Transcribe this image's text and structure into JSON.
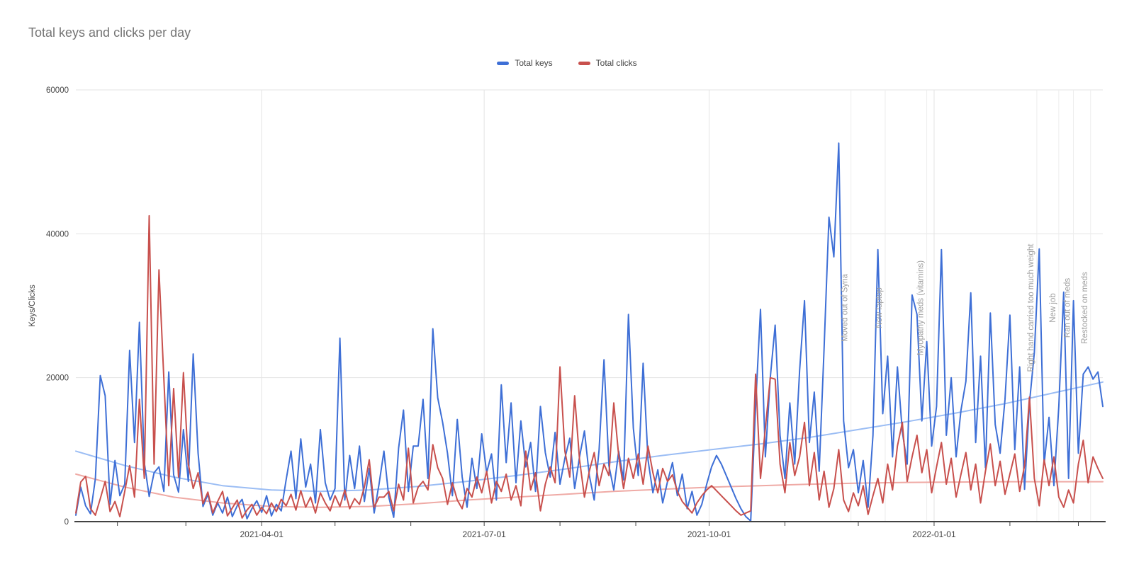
{
  "chart_data": {
    "type": "line",
    "title": "Total keys and clicks per day",
    "ylabel": "Keys/Clicks",
    "xlabel": "",
    "legend": [
      "Total keys",
      "Total clicks"
    ],
    "legend_position": "top-center",
    "grid": true,
    "ylim": [
      0,
      60000
    ],
    "x_start_date": "2021-01-15",
    "x_total_days": 420,
    "x_step_days": 2,
    "y_ticks": [
      {
        "label": "0",
        "value": 0
      },
      {
        "label": "20000",
        "value": 20000
      },
      {
        "label": "40000",
        "value": 40000
      },
      {
        "label": "60000",
        "value": 60000
      }
    ],
    "x_ticks": [
      {
        "label": "2021-04-01",
        "day": 76
      },
      {
        "label": "2021-07-01",
        "day": 167
      },
      {
        "label": "2021-10-01",
        "day": 259
      },
      {
        "label": "2022-01-01",
        "day": 351
      }
    ],
    "x_minor_tick_days": [
      17,
      45,
      76,
      106,
      137,
      167,
      198,
      229,
      259,
      290,
      320,
      351,
      382,
      410
    ],
    "annotations": [
      {
        "label": "Moved out of Syria",
        "day": 317
      },
      {
        "label": "New laptop",
        "day": 331
      },
      {
        "label": "Myopathy meds (vitamins)",
        "day": 348
      },
      {
        "label": "Right hand carried too much weight",
        "day": 393
      },
      {
        "label": "New job",
        "day": 402
      },
      {
        "label": "Ran out of meds",
        "day": 408
      },
      {
        "label": "Restocked on meds",
        "day": 415
      }
    ],
    "colors": {
      "keys": "#3e6fd6",
      "clicks": "#c8504d",
      "keys_trend": "#9bbdf4",
      "clicks_trend": "#efaaa5",
      "grid": "#e3e3e3",
      "annotation_line": "#ededed",
      "axis": "#424242",
      "tick_label": "#444444",
      "title": "#757575",
      "annotation_text": "#9e9e9e"
    },
    "series": [
      {
        "name": "Total keys",
        "values": [
          900,
          4800,
          2200,
          1100,
          6000,
          20300,
          17500,
          2400,
          8500,
          3600,
          5200,
          23800,
          11000,
          27700,
          8200,
          3500,
          6800,
          7600,
          4200,
          20800,
          6500,
          4100,
          12800,
          5600,
          23300,
          9500,
          2100,
          3800,
          900,
          2600,
          1200,
          3400,
          700,
          2200,
          3100,
          400,
          1800,
          2900,
          1300,
          3600,
          800,
          2400,
          1500,
          5800,
          9800,
          3200,
          11500,
          4800,
          8000,
          2600,
          12800,
          5400,
          3000,
          4600,
          25500,
          3000,
          9200,
          4600,
          10500,
          2800,
          7400,
          1200,
          5200,
          9800,
          3400,
          600,
          10200,
          15500,
          4200,
          10500,
          10500,
          17000,
          6000,
          26800,
          17200,
          13800,
          9500,
          3600,
          14200,
          6200,
          2000,
          8800,
          4600,
          12200,
          6800,
          9400,
          3000,
          19000,
          8200,
          16500,
          5400,
          14000,
          7600,
          11000,
          4200,
          16000,
          9600,
          6200,
          12400,
          5200,
          8800,
          11600,
          4600,
          9000,
          12600,
          6400,
          3000,
          10000,
          22500,
          7800,
          4400,
          9800,
          5800,
          28800,
          13000,
          6400,
          22000,
          8600,
          4000,
          7200,
          2600,
          5600,
          8200,
          3600,
          6600,
          1800,
          4200,
          900,
          2400,
          5200,
          7600,
          9200,
          8000,
          6400,
          4800,
          3200,
          1800,
          700,
          100,
          16000,
          29500,
          9000,
          20000,
          27300,
          12000,
          6000,
          16500,
          8000,
          21000,
          30700,
          11000,
          18000,
          7000,
          24000,
          42300,
          36800,
          52600,
          14000,
          7500,
          10000,
          4000,
          8500,
          2000,
          12000,
          37800,
          15000,
          23000,
          9000,
          21500,
          12500,
          8000,
          31500,
          28800,
          14000,
          25000,
          10500,
          16000,
          37800,
          12000,
          20000,
          9000,
          15500,
          19500,
          31800,
          11000,
          23000,
          7500,
          29000,
          13500,
          9500,
          17000,
          28700,
          10000,
          21500,
          4500,
          16500,
          23500,
          37900,
          8000,
          14500,
          5000,
          16000,
          31900,
          6000,
          30700,
          9500,
          20500,
          21500,
          19800,
          20800,
          16000
        ]
      },
      {
        "name": "Total clicks",
        "values": [
          1200,
          5500,
          6300,
          1800,
          900,
          3200,
          5600,
          1400,
          2800,
          700,
          4200,
          7800,
          3400,
          17000,
          6000,
          42500,
          8000,
          35000,
          19800,
          5000,
          18500,
          6200,
          20700,
          8000,
          4600,
          6800,
          2500,
          4100,
          1200,
          2800,
          4200,
          800,
          1900,
          3000,
          500,
          1600,
          2400,
          900,
          2000,
          1100,
          2600,
          1400,
          3100,
          2200,
          3800,
          1600,
          4300,
          2000,
          3400,
          1200,
          4000,
          2600,
          1500,
          3600,
          2100,
          4400,
          1800,
          3200,
          2400,
          4800,
          8600,
          2000,
          3400,
          3400,
          4200,
          1500,
          5200,
          3000,
          10200,
          2600,
          4800,
          5600,
          4400,
          10700,
          7500,
          6000,
          2400,
          5400,
          3000,
          1800,
          4600,
          3400,
          6200,
          4000,
          7000,
          2600,
          5600,
          4200,
          6600,
          3000,
          5000,
          2200,
          9800,
          4400,
          6800,
          1500,
          5200,
          7600,
          5400,
          21500,
          9800,
          6200,
          17500,
          8600,
          3400,
          7000,
          9600,
          5000,
          8000,
          6400,
          16500,
          9200,
          4600,
          8800,
          6000,
          9400,
          5200,
          10500,
          6800,
          4000,
          7400,
          5600,
          6500,
          4200,
          2800,
          2000,
          1200,
          2600,
          3600,
          4400,
          5000,
          4300,
          3600,
          2900,
          2200,
          1500,
          900,
          1200,
          1500,
          20500,
          6000,
          13000,
          20000,
          19800,
          8000,
          4000,
          11000,
          6400,
          9000,
          13800,
          5000,
          9600,
          3000,
          7000,
          2000,
          4600,
          10000,
          3000,
          1400,
          4000,
          2200,
          5000,
          1000,
          3600,
          6000,
          2600,
          8000,
          4400,
          10500,
          13800,
          5600,
          9000,
          12000,
          6800,
          10000,
          4000,
          7600,
          11000,
          5200,
          8800,
          3400,
          6600,
          9600,
          4400,
          8000,
          2600,
          7000,
          10800,
          5000,
          8400,
          3800,
          6600,
          9400,
          4200,
          7800,
          17300,
          6000,
          2200,
          8600,
          5000,
          9000,
          3400,
          2000,
          4400,
          2600,
          8000,
          11300,
          5400,
          9000,
          7400,
          6000
        ]
      }
    ],
    "trendlines": [
      {
        "name": "Total keys trend",
        "day_step": 20,
        "values": [
          9800,
          7800,
          6200,
          5000,
          4400,
          4200,
          4400,
          4900,
          5600,
          6400,
          7300,
          8300,
          9200,
          10000,
          10800,
          11700,
          12800,
          13900,
          15100,
          16400,
          17900,
          19400
        ]
      },
      {
        "name": "Total clicks trend",
        "day_step": 20,
        "values": [
          6600,
          4800,
          3400,
          2600,
          2100,
          2000,
          2100,
          2500,
          3000,
          3400,
          3800,
          4200,
          4500,
          4800,
          5000,
          5200,
          5350,
          5450,
          5500,
          5550,
          5550,
          5550
        ]
      }
    ]
  }
}
